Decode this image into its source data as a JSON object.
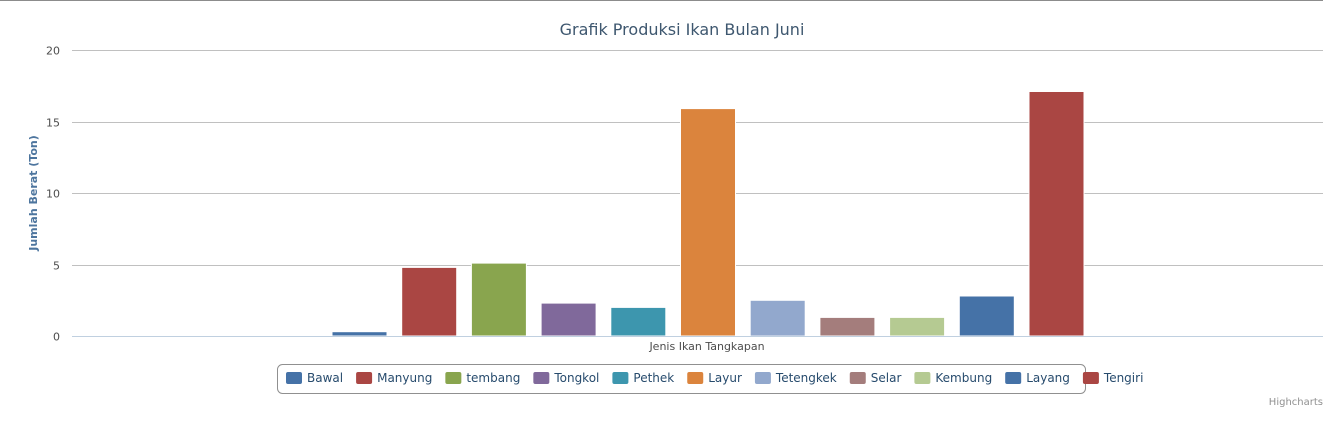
{
  "chart_data": {
    "type": "bar",
    "title": "Grafik Produksi Ikan Bulan Juni",
    "xlabel": "Jenis Ikan Tangkapan",
    "ylabel": "Jumlah Berat (Ton)",
    "ylim": [
      0,
      20
    ],
    "yticks": [
      "0",
      "5",
      "10",
      "15",
      "20"
    ],
    "grid": true,
    "legend_position": "bottom-center",
    "series": [
      {
        "name": "Bawal",
        "value": 0.3,
        "color": "#4572A7"
      },
      {
        "name": "Manyung",
        "value": 4.8,
        "color": "#AA4643"
      },
      {
        "name": "tembang",
        "value": 5.1,
        "color": "#89A54E"
      },
      {
        "name": "Tongkol",
        "value": 2.3,
        "color": "#80699B"
      },
      {
        "name": "Pethek",
        "value": 2.0,
        "color": "#3D96AE"
      },
      {
        "name": "Layur",
        "value": 15.9,
        "color": "#DB843D"
      },
      {
        "name": "Tetengkek",
        "value": 2.5,
        "color": "#92A8CD"
      },
      {
        "name": "Selar",
        "value": 1.3,
        "color": "#A47D7C"
      },
      {
        "name": "Kembung",
        "value": 1.3,
        "color": "#B5CA92"
      },
      {
        "name": "Layang",
        "value": 2.8,
        "color": "#4572A7"
      },
      {
        "name": "Tengiri",
        "value": 17.1,
        "color": "#AA4643"
      }
    ]
  },
  "credits": "Highcharts"
}
